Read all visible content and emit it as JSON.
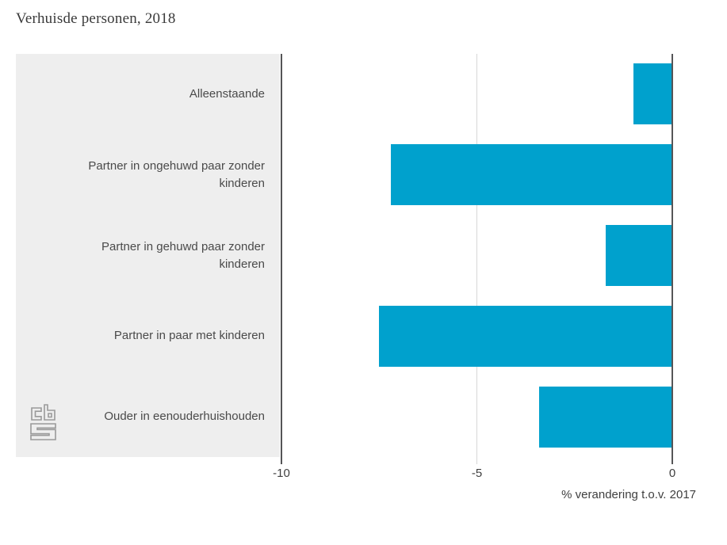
{
  "title": "Verhuisde personen, 2018",
  "chart_data": {
    "type": "bar",
    "orientation": "horizontal",
    "title": "Verhuisde personen, 2018",
    "categories": [
      "Alleenstaande",
      "Partner in ongehuwd paar zonder kinderen",
      "Partner in gehuwd paar zonder kinderen",
      "Partner in paar met kinderen",
      "Ouder in eenouderhuishouden"
    ],
    "values": [
      -1.0,
      -7.2,
      -1.7,
      -7.5,
      -3.4
    ],
    "xlabel": "% verandering t.o.v. 2017",
    "ylabel": "",
    "xlim": [
      -10,
      0
    ],
    "xticks": [
      -10,
      -5,
      0
    ],
    "xtick_labels": [
      "-10",
      "-5",
      "0"
    ],
    "grid": "vertical gridline at -5, dark axis lines at -10 and 0",
    "legend": "none",
    "bar_color": "#00a1cd",
    "panel_color": "#eeeeee",
    "axis_line_color": "#555557",
    "gridline_color": "#d7d7d7"
  },
  "logo": {
    "label": "cbs",
    "color": "#9a9a9a"
  }
}
